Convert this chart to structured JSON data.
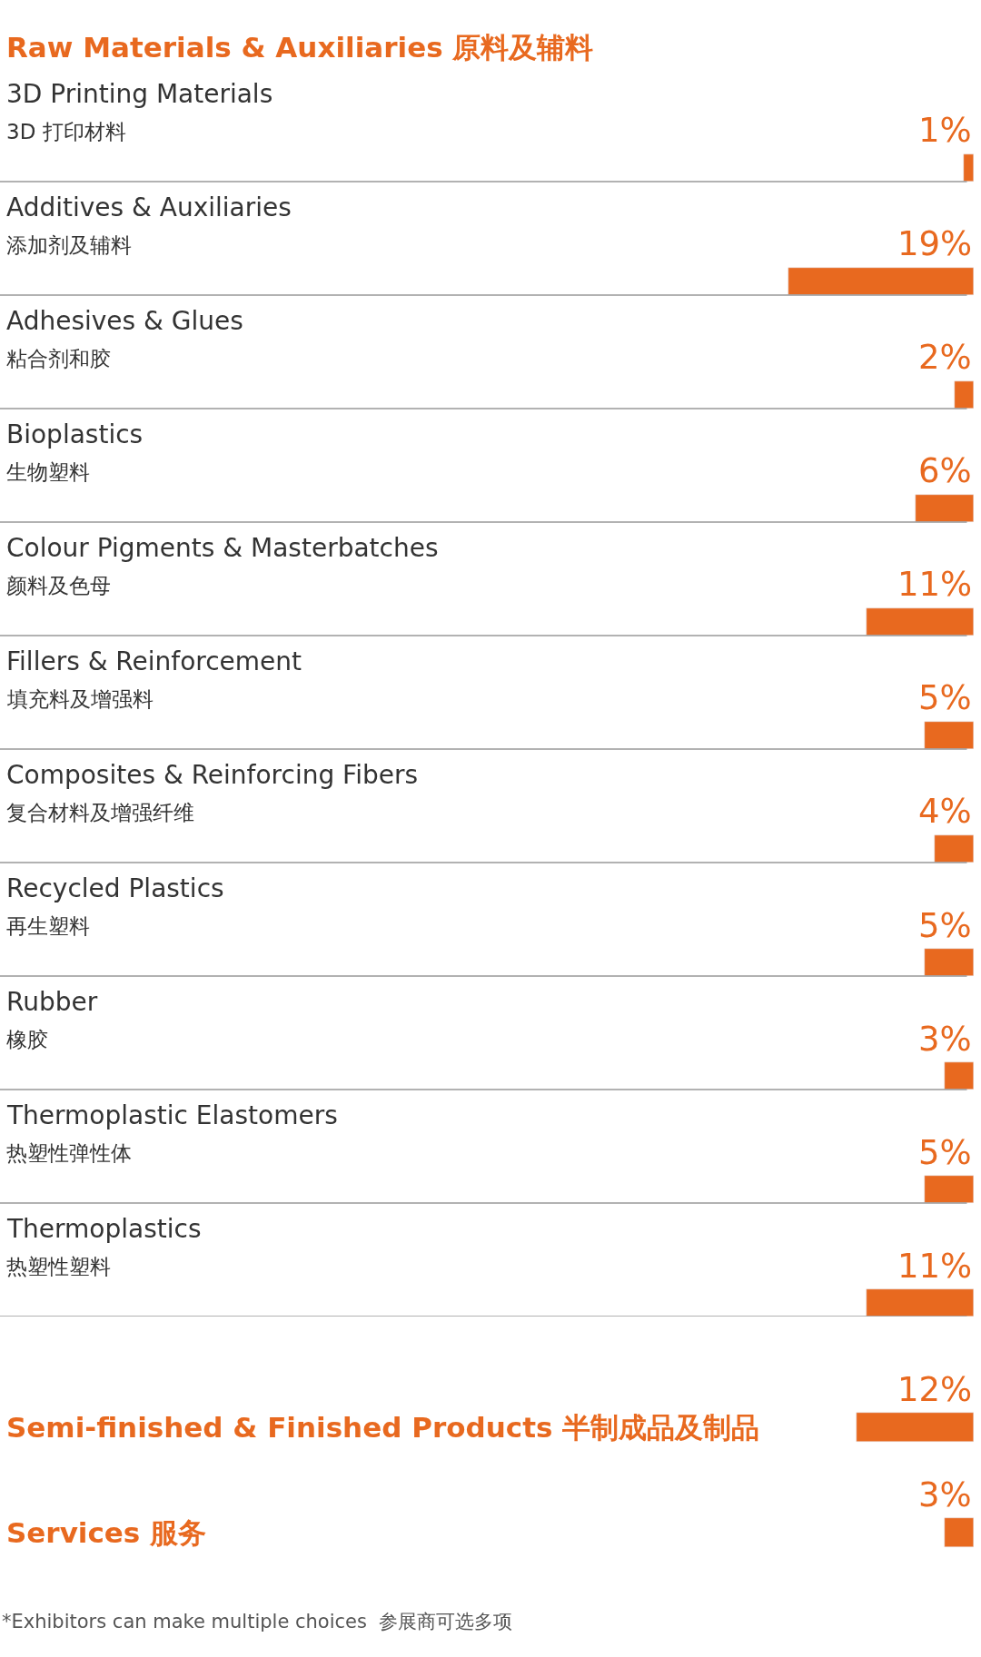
{
  "chart_data": [
    {
      "type": "bar",
      "orientation": "horizontal",
      "title": "Raw Materials & Auxiliaries 原料及辅料",
      "categories": [
        "3D Printing Materials\n3D 打印材料",
        "Additives & Auxiliaries\n添加剂及辅料",
        "Adhesives & Glues\n粘合剂和胶",
        "Bioplastics\n生物塑料",
        "Colour Pigments & Masterbatches\n颜料及色母",
        "Fillers & Reinforcement\n填充料及增强料",
        "Composites & Reinforcing Fibers\n复合材料及增强纤维",
        "Recycled Plastics\n再生塑料",
        "Rubber\n橡胶",
        "Thermoplastic Elastomers\n热塑性弹性体",
        "Thermoplastics\n热塑性塑料"
      ],
      "values": [
        1,
        19,
        2,
        6,
        11,
        5,
        4,
        5,
        3,
        5,
        11
      ],
      "value_labels": [
        "1%",
        "19%",
        "2%",
        "6%",
        "11%",
        "5%",
        "4%",
        "5%",
        "3%",
        "5%",
        "11%"
      ],
      "color": "#e8691f",
      "xlim": [
        100,
        0
      ],
      "tick_labels": false
    },
    {
      "type": "bar",
      "orientation": "horizontal",
      "categories": [
        "Semi-finished & Finished Products 半制成品及制品",
        "Services 服务"
      ],
      "values": [
        12,
        3
      ],
      "value_labels": [
        "12%",
        "3%"
      ],
      "color": "#e8691f",
      "xlim": [
        100,
        0
      ],
      "tick_labels": false,
      "annotations": [
        "*Exhibitors can make multiple choices  参展商可选多项"
      ]
    }
  ]
}
